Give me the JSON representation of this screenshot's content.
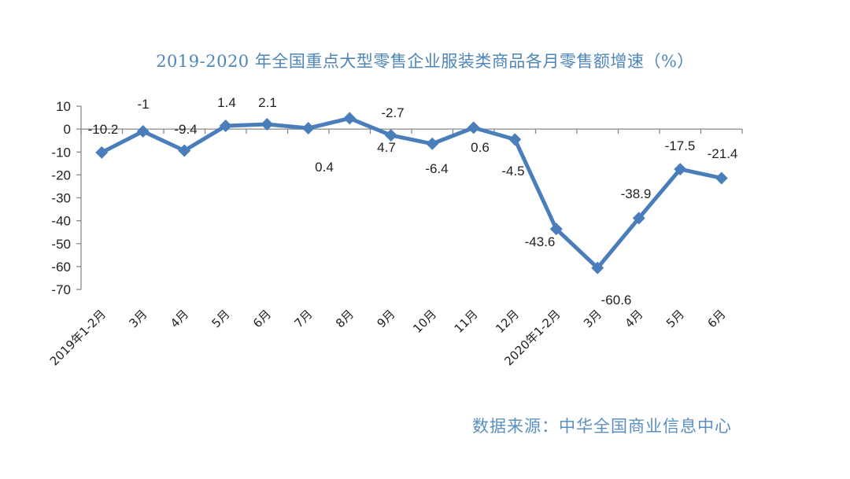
{
  "chart_data": {
    "type": "line",
    "title": "2019-2020 年全国重点大型零售企业服装类商品各月零售额增速（%）",
    "xlabel": "",
    "ylabel": "",
    "ylim": [
      -70,
      10
    ],
    "yticks": [
      10,
      0,
      -10,
      -20,
      -30,
      -40,
      -50,
      -60,
      -70
    ],
    "grid": false,
    "legend": null,
    "categories": [
      "2019年1-2月",
      "3月",
      "4月",
      "5月",
      "6月",
      "7月",
      "8月",
      "9月",
      "10月",
      "11月",
      "12月",
      "2020年1-2月",
      "3月",
      "4月",
      "5月",
      "6月"
    ],
    "series": [
      {
        "name": "零售额增速",
        "color": "#4a7ebb",
        "values": [
          -10.2,
          -1,
          -9.4,
          1.4,
          2.1,
          0.4,
          4.7,
          -2.7,
          -6.4,
          0.6,
          -4.5,
          -43.6,
          -60.6,
          -38.9,
          -17.5,
          -21.4
        ]
      }
    ],
    "data_labels": [
      "-10.2",
      "-1",
      "-9.4",
      "1.4",
      "2.1",
      "0.4",
      "4.7",
      "-2.7",
      "-6.4",
      "0.6",
      "-4.5",
      "-43.6",
      "-60.6",
      "-38.9",
      "-17.5",
      "-21.4"
    ]
  },
  "title": "2019-2020 年全国重点大型零售企业服装类商品各月零售额增速（%）",
  "source": "数据来源：中华全国商业信息中心",
  "colors": {
    "line": "#4a7ebb",
    "title": "#4f86b8",
    "axis": "#888888"
  }
}
